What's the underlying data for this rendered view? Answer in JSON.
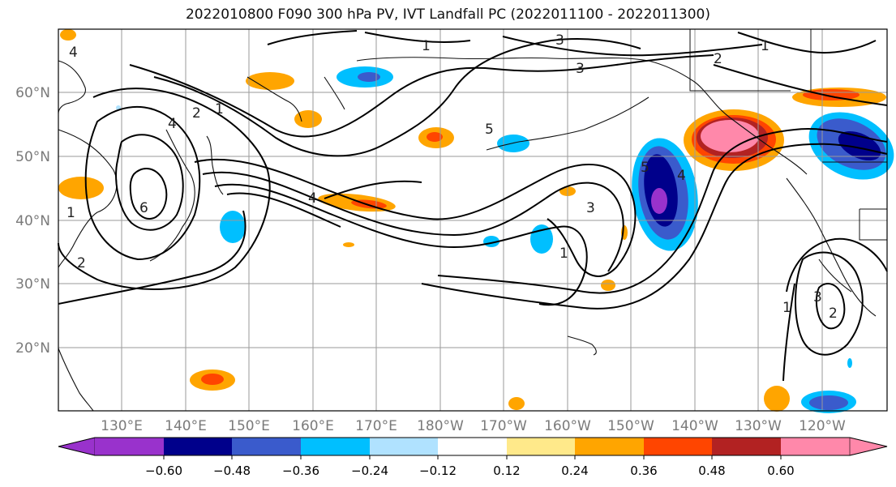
{
  "title": "2022010800 F090 300 hPa PV, IVT Landfall PC (2022011100 - 2022011300)",
  "map": {
    "lat_labels": [
      "60°N",
      "50°N",
      "40°N",
      "30°N",
      "20°N"
    ],
    "lon_labels": [
      "130°E",
      "140°E",
      "150°E",
      "160°E",
      "170°E",
      "180°W",
      "170°W",
      "160°W",
      "150°W",
      "140°W",
      "130°W",
      "120°W"
    ],
    "contour_labels": [
      "1",
      "2",
      "3",
      "4",
      "5",
      "6"
    ]
  },
  "colorbar": {
    "colors": [
      "#9932cc",
      "#00008b",
      "#3a5bcc",
      "#00bfff",
      "#b0e2ff",
      "#ffffff",
      "#ffe98a",
      "#ffa500",
      "#ff4500",
      "#b22222",
      "#ff88aa"
    ],
    "tick_labels": [
      "−0.60",
      "−0.48",
      "−0.36",
      "−0.24",
      "−0.12",
      "0.12",
      "0.24",
      "0.36",
      "0.48",
      "0.60"
    ]
  }
}
